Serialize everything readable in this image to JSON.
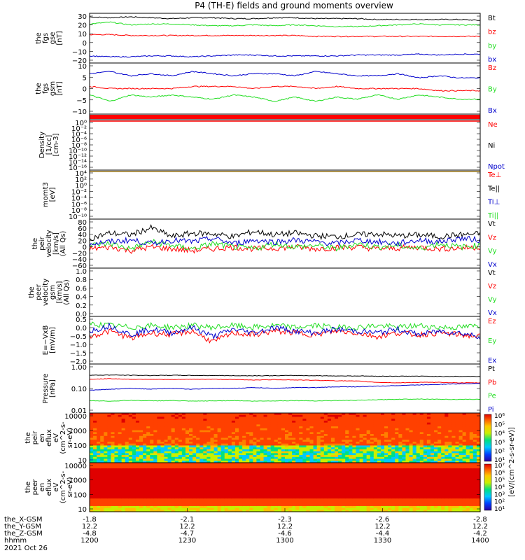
{
  "title": "P4 (TH-E) fields and ground moments overview",
  "colors": {
    "black": "#000000",
    "red": "#ff0000",
    "green": "#22dd22",
    "blue": "#0000cc"
  },
  "chart_data": [
    {
      "type": "line",
      "ylabel": [
        "the",
        "fgs",
        "gse",
        "[nT]"
      ],
      "yticks": [
        "30",
        "20",
        "10",
        "0",
        "−10",
        "−20"
      ],
      "ylim": [
        -24,
        32
      ],
      "series": [
        {
          "name": "Bt",
          "color": "black",
          "values": [
            28,
            27,
            28,
            27,
            26,
            27,
            27,
            26,
            26,
            27,
            27,
            26,
            26,
            26,
            25,
            25,
            25,
            25,
            25,
            24
          ]
        },
        {
          "name": "bz",
          "color": "red",
          "values": [
            8,
            8,
            7,
            7,
            7,
            7,
            7,
            7,
            7,
            7,
            7,
            6,
            6,
            6,
            6,
            6,
            6,
            6,
            6,
            6
          ]
        },
        {
          "name": "by",
          "color": "green",
          "values": [
            20,
            22,
            19,
            20,
            20,
            19,
            18,
            18,
            19,
            18,
            19,
            18,
            17,
            17,
            18,
            19,
            20,
            19,
            19,
            19
          ]
        },
        {
          "name": "bx",
          "color": "blue",
          "values": [
            -16,
            -17,
            -17,
            -16,
            -16,
            -17,
            -16,
            -15,
            -15,
            -16,
            -16,
            -16,
            -16,
            -15,
            -15,
            -15,
            -14,
            -15,
            -14,
            -14
          ]
        }
      ]
    },
    {
      "type": "line",
      "ylabel": [
        "the",
        "fgs",
        "gsm",
        "[nT]"
      ],
      "yticks": [
        "10",
        "5",
        "0",
        "−5",
        "−10"
      ],
      "ylim": [
        -14,
        10
      ],
      "series": [
        {
          "name": "Bz",
          "color": "red",
          "values": [
            -1,
            -2,
            -2,
            -2,
            -2,
            -1,
            -1,
            -1,
            -2,
            -1,
            -1,
            -2,
            -1,
            -2,
            -2,
            -2,
            -2,
            -3,
            -3,
            -3
          ]
        },
        {
          "name": "By",
          "color": "green",
          "values": [
            -5,
            -8,
            -5,
            -6,
            -5,
            -6,
            -7,
            -5,
            -6,
            -8,
            -6,
            -8,
            -6,
            -7,
            -5,
            -7,
            -5,
            -6,
            -7,
            -7
          ]
        },
        {
          "name": "Bx",
          "color": "blue",
          "values": [
            5,
            6,
            4,
            5,
            4,
            6,
            5,
            4,
            5,
            5,
            4,
            6,
            5,
            4,
            4,
            5,
            3,
            4,
            3,
            3
          ]
        }
      ]
    },
    {
      "type": "line",
      "ylabel": [
        "Density",
        "[1/cc]",
        "[cm-3]"
      ],
      "yticks": [
        "10⁰",
        "10⁻²",
        "10⁻⁴",
        "10⁻⁶",
        "10⁻⁸",
        "10⁻¹⁰",
        "10⁻¹²",
        "10⁻¹⁴",
        "10⁻¹⁶"
      ],
      "ylim": [
        -16,
        0
      ],
      "series": [
        {
          "name": "Ne",
          "color": "red"
        },
        {
          "name": "Ni",
          "color": "black"
        },
        {
          "name": "Npot",
          "color": "blue"
        }
      ]
    },
    {
      "type": "line",
      "ylabel": [
        "momt3",
        "[eV]"
      ],
      "yticks": [
        "10⁴",
        "10²",
        "10⁰",
        "10⁻²",
        "10⁻⁴",
        "10⁻⁶",
        "10⁻⁸",
        "10⁻¹⁰"
      ],
      "ylim": [
        -10,
        4
      ],
      "series": [
        {
          "name": "Te⊥",
          "color": "red"
        },
        {
          "name": "Te||",
          "color": "black"
        },
        {
          "name": "Ti⊥",
          "color": "blue"
        },
        {
          "name": "Ti||",
          "color": "green"
        }
      ]
    },
    {
      "type": "line",
      "ylabel": [
        "the",
        "peir",
        "velocity",
        "[km/s]",
        "(All Qs)"
      ],
      "yticks": [
        "80",
        "60",
        "40",
        "20",
        "0",
        "−20",
        "−40",
        "−60"
      ],
      "ylim": [
        -60,
        80
      ],
      "series": [
        {
          "name": "Vt",
          "color": "black",
          "values": [
            25,
            40,
            35,
            55,
            30,
            40,
            38,
            30,
            45,
            35,
            40,
            32,
            30,
            35,
            38,
            32,
            35,
            30,
            35,
            38
          ]
        },
        {
          "name": "Vz",
          "color": "red",
          "values": [
            -5,
            0,
            -10,
            0,
            -5,
            -10,
            -5,
            0,
            -5,
            -3,
            0,
            -5,
            -2,
            0,
            -5,
            -3,
            0,
            -5,
            -3,
            0
          ]
        },
        {
          "name": "Vy",
          "color": "green",
          "values": [
            5,
            10,
            -5,
            15,
            5,
            -5,
            10,
            0,
            -5,
            10,
            0,
            5,
            -5,
            10,
            0,
            5,
            -5,
            10,
            0,
            5
          ]
        },
        {
          "name": "Vx",
          "color": "blue",
          "values": [
            10,
            15,
            20,
            10,
            20,
            15,
            25,
            10,
            20,
            15,
            20,
            15,
            10,
            20,
            15,
            10,
            20,
            15,
            25,
            20
          ]
        }
      ]
    },
    {
      "type": "line",
      "ylabel": [
        "the",
        "peer",
        "velocity",
        "gsm",
        "[km/s]",
        "(All Qs)"
      ],
      "yticks": [
        "1.0",
        "0.8",
        "0.6",
        "0.4",
        "0.2",
        "0.0"
      ],
      "ylim": [
        0,
        1
      ],
      "series": [
        {
          "name": "Vt",
          "color": "black"
        },
        {
          "name": "Vz",
          "color": "red"
        },
        {
          "name": "Vy",
          "color": "green"
        },
        {
          "name": "Vx",
          "color": "blue"
        }
      ]
    },
    {
      "type": "line",
      "ylabel": [
        "E=−VxB",
        "[mV/m]"
      ],
      "yticks": [
        "0.5",
        "0.0",
        "−0.5",
        "−1.0",
        "−1.5",
        "−2.0"
      ],
      "ylim": [
        -2,
        0.6
      ],
      "series": [
        {
          "name": "Ez",
          "color": "red",
          "values": [
            -0.5,
            -0.2,
            -0.6,
            -0.3,
            -0.4,
            -0.2,
            -0.8,
            -0.3,
            -0.4,
            -0.2,
            -0.3,
            -0.4,
            -0.2,
            -0.3,
            -0.5,
            -0.3,
            -0.4,
            -0.3,
            -0.4,
            -0.5
          ]
        },
        {
          "name": "Ey",
          "color": "green",
          "values": [
            0.2,
            0.1,
            0.0,
            0.1,
            0.0,
            0.1,
            0.0,
            0.1,
            0.0,
            0.1,
            0.0,
            0.1,
            0.0,
            0.0,
            0.1,
            0.0,
            0.1,
            0.0,
            0.0,
            0.1
          ]
        },
        {
          "name": "Ex",
          "color": "blue",
          "values": [
            -0.2,
            0.1,
            -0.4,
            -0.1,
            -0.3,
            0.0,
            -0.5,
            -0.1,
            -0.3,
            0.0,
            -0.2,
            -0.3,
            -0.1,
            -0.2,
            -0.3,
            -0.1,
            -0.4,
            -0.2,
            -0.3,
            -0.5
          ]
        }
      ]
    },
    {
      "type": "line",
      "ylabel": [
        "Pressure",
        "[nPa]"
      ],
      "yticks": [
        "1.00",
        "0.10",
        "0.01"
      ],
      "ylim": [
        0.01,
        1.4
      ],
      "yscale": "log",
      "series": [
        {
          "name": "Pt",
          "color": "black",
          "values": [
            0.45,
            0.46,
            0.45,
            0.44,
            0.45,
            0.44,
            0.44,
            0.43,
            0.43,
            0.43,
            0.44,
            0.43,
            0.42,
            0.42,
            0.41,
            0.41,
            0.41,
            0.4,
            0.4,
            0.4
          ]
        },
        {
          "name": "Pb",
          "color": "red",
          "values": [
            0.3,
            0.32,
            0.3,
            0.3,
            0.29,
            0.3,
            0.3,
            0.29,
            0.28,
            0.29,
            0.28,
            0.27,
            0.26,
            0.25,
            0.22,
            0.21,
            0.22,
            0.22,
            0.21,
            0.21
          ]
        },
        {
          "name": "Pe",
          "color": "green",
          "values": [
            0.035,
            0.033,
            0.036,
            0.034,
            0.035,
            0.033,
            0.034,
            0.035,
            0.033,
            0.034,
            0.035,
            0.034,
            0.035,
            0.036,
            0.038,
            0.04,
            0.041,
            0.04,
            0.039,
            0.04
          ]
        },
        {
          "name": "Pi",
          "color": "blue",
          "values": [
            0.1,
            0.11,
            0.12,
            0.11,
            0.12,
            0.11,
            0.12,
            0.12,
            0.13,
            0.12,
            0.13,
            0.13,
            0.14,
            0.14,
            0.15,
            0.16,
            0.17,
            0.18,
            0.19,
            0.2
          ]
        }
      ]
    },
    {
      "type": "heatmap",
      "ylabel": [
        "the",
        "peir",
        "en",
        "eflux",
        "eV",
        "(cm^2-s-",
        "sr-eV)"
      ],
      "yticks": [
        "10000",
        "1000",
        "100",
        "10"
      ],
      "ylim": [
        5,
        20000
      ],
      "yscale": "log"
    },
    {
      "type": "heatmap",
      "ylabel": [
        "the",
        "peer",
        "en",
        "eflux",
        "eV",
        "(cm^2-s-",
        "sr-eV)"
      ],
      "yticks": [
        "10000",
        "1000",
        "100",
        "10"
      ],
      "ylim": [
        5,
        20000
      ],
      "yscale": "log"
    }
  ],
  "colorbar": {
    "label": "[eV/(cm^2-s-sr-eV)]",
    "top": {
      "ticks": [
        "10⁶",
        "10⁵",
        "10⁴",
        "10³",
        "10²",
        "10¹"
      ]
    },
    "bottom": {
      "ticks": [
        "10⁷",
        "10⁶",
        "10⁵",
        "10⁴",
        "10³",
        "10²",
        "10¹"
      ]
    }
  },
  "xaxis": {
    "row_labels": [
      "the_X-GSM",
      "the_Y-GSM",
      "the_Z-GSM",
      "hhmm",
      "2021 Oct 26"
    ],
    "ticks": [
      {
        "x": "-1.8",
        "y": "12.2",
        "z": "-4.8",
        "t": "1200"
      },
      {
        "x": "-2.1",
        "y": "12.2",
        "z": "-4.7",
        "t": "1230"
      },
      {
        "x": "-2.3",
        "y": "12.2",
        "z": "-4.6",
        "t": "1300"
      },
      {
        "x": "-2.6",
        "y": "12.2",
        "z": "-4.4",
        "t": "1330"
      },
      {
        "x": "-2.8",
        "y": "12.2",
        "z": "-4.2",
        "t": "1400"
      }
    ]
  }
}
